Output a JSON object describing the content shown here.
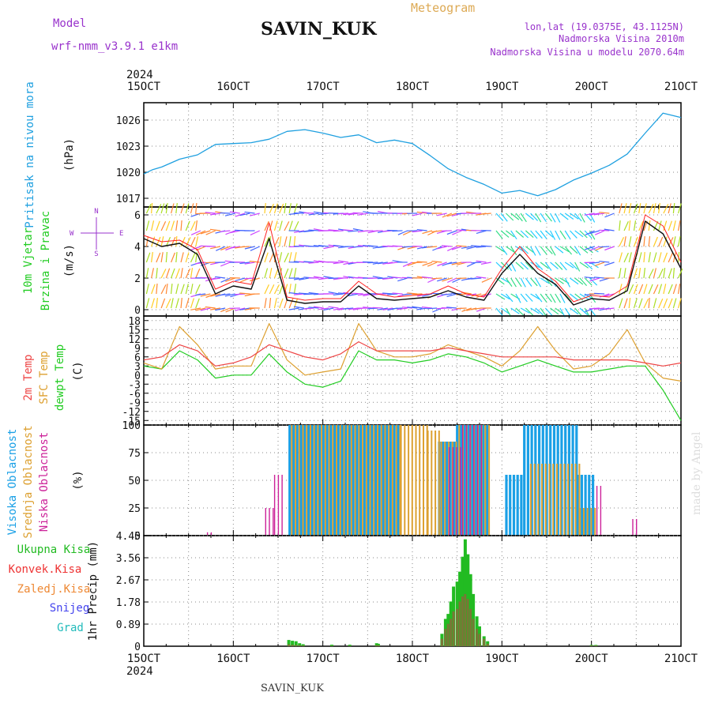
{
  "header": {
    "model_label": "Model",
    "model_name": "wrf-nmm_v3.9.1 e1km",
    "station": "SAVIN_KUK",
    "product": "Meteogram",
    "lonlat": "lon,lat (19.0375E, 43.1125N)",
    "altitude": "Nadmorska Visina 2010m",
    "model_altitude": "Nadmorska Visina u modelu 2070.64m",
    "year_top": "2024",
    "year_bottom": "2024",
    "footer_station": "SAVIN_KUK",
    "credit": "made by Angel"
  },
  "colors": {
    "pressure": "#1fa0e0",
    "wind_speed": "#111111",
    "wind_max": "#ff2222",
    "t2m": "#ee4444",
    "sfc": "#dda030",
    "dewpt": "#22cc22",
    "cloud_high": "#1aa0e6",
    "cloud_mid": "#dda030",
    "cloud_low": "#cc2299",
    "precip_total": "#22bb22",
    "precip_conv": "#ee3333",
    "precip_frozen": "#ee8833",
    "snow": "#4444ee",
    "hail": "#22bbbb"
  },
  "chart_data": [
    {
      "id": "pressure",
      "type": "line",
      "labels": [
        "Pritisak na nivou mora"
      ],
      "unit": "(hPa)",
      "x_ticks": [
        "15OCT",
        "16OCT",
        "17OCT",
        "18OCT",
        "19OCT",
        "20OCT",
        "21OCT"
      ],
      "y_ticks": [
        "1017",
        "1020",
        "1023",
        "1026"
      ],
      "ylim": [
        1016,
        1028
      ],
      "x": [
        15.0,
        15.1,
        15.2,
        15.4,
        15.6,
        15.8,
        16.0,
        16.2,
        16.4,
        16.6,
        16.8,
        17.0,
        17.2,
        17.4,
        17.6,
        17.8,
        18.0,
        18.2,
        18.4,
        18.6,
        18.8,
        19.0,
        19.2,
        19.4,
        19.6,
        19.8,
        20.0,
        20.2,
        20.4,
        20.6,
        20.8,
        21.0
      ],
      "series": [
        {
          "values": [
            1019.8,
            1020.3,
            1020.6,
            1021.5,
            1022.0,
            1023.2,
            1023.3,
            1023.4,
            1023.8,
            1024.7,
            1024.9,
            1024.5,
            1024.0,
            1024.3,
            1023.4,
            1023.7,
            1023.3,
            1021.9,
            1020.4,
            1019.4,
            1018.6,
            1017.6,
            1017.9,
            1017.3,
            1018.0,
            1019.1,
            1019.9,
            1020.8,
            1022.1,
            1024.5,
            1026.8,
            1026.3
          ]
        }
      ]
    },
    {
      "id": "wind",
      "type": "line",
      "labels": [
        "10m Vjetar",
        "Brzina i Pravac"
      ],
      "unit": "(m/s)",
      "compass": [
        "W",
        "E",
        "N",
        "S"
      ],
      "y_ticks": [
        "0",
        "2",
        "4",
        "6"
      ],
      "ylim": [
        -0.4,
        6.5
      ],
      "x": [
        15.0,
        15.2,
        15.4,
        15.6,
        15.8,
        16.0,
        16.2,
        16.4,
        16.6,
        16.8,
        17.0,
        17.2,
        17.4,
        17.6,
        17.8,
        18.0,
        18.2,
        18.4,
        18.6,
        18.8,
        19.0,
        19.2,
        19.4,
        19.6,
        19.8,
        20.0,
        20.2,
        20.4,
        20.6,
        20.8,
        21.0
      ],
      "series": [
        {
          "values": [
            4.5,
            4.0,
            4.2,
            3.5,
            1.0,
            1.5,
            1.3,
            4.5,
            0.6,
            0.4,
            0.5,
            0.5,
            1.5,
            0.7,
            0.6,
            0.7,
            0.8,
            1.2,
            0.8,
            0.6,
            2.3,
            3.5,
            2.3,
            1.6,
            0.3,
            0.7,
            0.6,
            1.2,
            5.6,
            4.8,
            2.6
          ]
        },
        {
          "values": [
            4.7,
            4.3,
            4.4,
            3.8,
            1.3,
            1.8,
            1.6,
            5.5,
            0.8,
            0.6,
            0.7,
            0.7,
            1.8,
            1.0,
            0.8,
            0.9,
            1.0,
            1.5,
            1.0,
            0.8,
            2.6,
            4.0,
            2.6,
            1.8,
            0.5,
            0.9,
            0.8,
            1.5,
            6.0,
            5.3,
            3.0
          ]
        }
      ]
    },
    {
      "id": "temperature",
      "type": "line",
      "labels": [
        "2m Temp",
        "SFC Temp",
        "dewpt Temp"
      ],
      "unit": "(C)",
      "y_ticks": [
        "18",
        "15",
        "12",
        "9",
        "6",
        "3",
        "0",
        "-3",
        "-6",
        "-9",
        "-12",
        "-15"
      ],
      "ylim": [
        -16.5,
        19.5
      ],
      "x": [
        15.0,
        15.2,
        15.4,
        15.6,
        15.8,
        16.0,
        16.2,
        16.4,
        16.6,
        16.8,
        17.0,
        17.2,
        17.4,
        17.6,
        17.8,
        18.0,
        18.2,
        18.4,
        18.6,
        18.8,
        19.0,
        19.2,
        19.4,
        19.6,
        19.8,
        20.0,
        20.2,
        20.4,
        20.6,
        20.8,
        21.0
      ],
      "series": [
        {
          "values": [
            5,
            6,
            10,
            8,
            3,
            4,
            6,
            10,
            8,
            6,
            5,
            7,
            11,
            8,
            8,
            8,
            8,
            9,
            8,
            7,
            6,
            6,
            6,
            6,
            5,
            5,
            5,
            5,
            4,
            3,
            4
          ]
        },
        {
          "values": [
            4,
            2,
            16,
            10,
            2,
            3,
            3,
            17,
            5,
            0,
            1,
            2,
            17,
            8,
            6,
            6,
            7,
            10,
            8,
            6,
            3,
            8,
            16,
            8,
            2,
            3,
            7,
            15,
            4,
            -1,
            -2
          ]
        },
        {
          "values": [
            3,
            2,
            8,
            5,
            -1,
            0,
            0,
            7,
            1,
            -3,
            -4,
            -2,
            8,
            5,
            5,
            4,
            5,
            7,
            6,
            4,
            1,
            3,
            5,
            3,
            1,
            1,
            2,
            3,
            3,
            -5,
            -15
          ]
        }
      ]
    },
    {
      "id": "clouds",
      "type": "bar",
      "labels": [
        "Visoka Oblacnost",
        "Srednja Oblacnost",
        "Niska Oblacnost"
      ],
      "unit": "(%)",
      "y_ticks": [
        "0",
        "25",
        "50",
        "75",
        "100"
      ],
      "ylim": [
        0,
        100
      ],
      "series": [
        {
          "segments": [
            [
              16.63,
              17.85,
              100
            ],
            [
              18.3,
              18.5,
              85
            ],
            [
              18.5,
              18.85,
              100
            ],
            [
              19.05,
              19.25,
              55
            ],
            [
              19.25,
              19.85,
              100
            ],
            [
              19.85,
              20.05,
              55
            ]
          ]
        },
        {
          "segments": [
            [
              16.63,
              17.85,
              100
            ],
            [
              17.85,
              18.15,
              100
            ],
            [
              18.15,
              18.3,
              95
            ],
            [
              18.3,
              18.5,
              85
            ],
            [
              18.5,
              18.85,
              100
            ],
            [
              19.3,
              19.85,
              65
            ],
            [
              19.85,
              20.05,
              25
            ]
          ]
        },
        {
          "segments": [
            [
              16.45,
              16.55,
              55
            ],
            [
              16.35,
              16.45,
              25
            ],
            [
              18.4,
              18.55,
              80
            ],
            [
              18.55,
              18.8,
              100
            ],
            [
              20.05,
              20.1,
              45
            ],
            [
              20.45,
              20.5,
              15
            ],
            [
              15.7,
              15.75,
              3
            ]
          ]
        }
      ]
    },
    {
      "id": "precip",
      "type": "bar",
      "labels": [
        "Ukupna Kisa",
        "Konvek.Kisa",
        "Zaledj.Kisa",
        "Snijeg",
        "Grad"
      ],
      "unit": "1hr Precip (mm)",
      "y_ticks": [
        "0",
        "0.89",
        "1.78",
        "2.67",
        "3.56",
        "4.45"
      ],
      "ylim": [
        0,
        4.45
      ],
      "x": [
        16.62,
        16.66,
        16.7,
        16.74,
        16.78,
        17.1,
        17.3,
        17.6,
        17.62,
        18.33,
        18.37,
        18.4,
        18.43,
        18.46,
        18.5,
        18.53,
        18.56,
        18.59,
        18.62,
        18.65,
        18.68,
        18.72,
        18.75,
        18.8,
        18.84,
        20.0,
        20.05
      ],
      "series": [
        {
          "values": [
            0.25,
            0.22,
            0.2,
            0.12,
            0.08,
            0.06,
            0.06,
            0.12,
            0.1,
            0.5,
            1.1,
            1.3,
            1.8,
            2.4,
            2.6,
            3.0,
            3.6,
            4.3,
            3.7,
            2.9,
            2.1,
            1.2,
            0.8,
            0.4,
            0.2,
            0.05,
            0.05
          ]
        },
        {
          "values": [
            0.08,
            0.06,
            0.05,
            0.04,
            0.03,
            0.02,
            0.02,
            0.05,
            0.04,
            0.3,
            0.7,
            0.9,
            1.1,
            1.4,
            1.5,
            1.8,
            2.0,
            2.1,
            1.9,
            1.5,
            1.1,
            0.7,
            0.5,
            0.3,
            0.1,
            0.03,
            0.03
          ]
        }
      ]
    }
  ]
}
